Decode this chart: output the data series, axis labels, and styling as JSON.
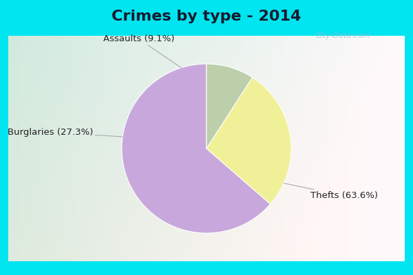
{
  "title": "Crimes by type - 2014",
  "slices": [
    {
      "label": "Thefts (63.6%)",
      "value": 63.6,
      "color": "#c8a8dc"
    },
    {
      "label": "Burglaries (27.3%)",
      "value": 27.3,
      "color": "#f0f099"
    },
    {
      "label": "Assaults (9.1%)",
      "value": 9.1,
      "color": "#bccfaa"
    }
  ],
  "bg_cyan": "#00e5f0",
  "title_fontsize": 16,
  "label_fontsize": 9.5,
  "watermark": "City-Data.com",
  "startangle": 90,
  "cyan_border": 0.05
}
